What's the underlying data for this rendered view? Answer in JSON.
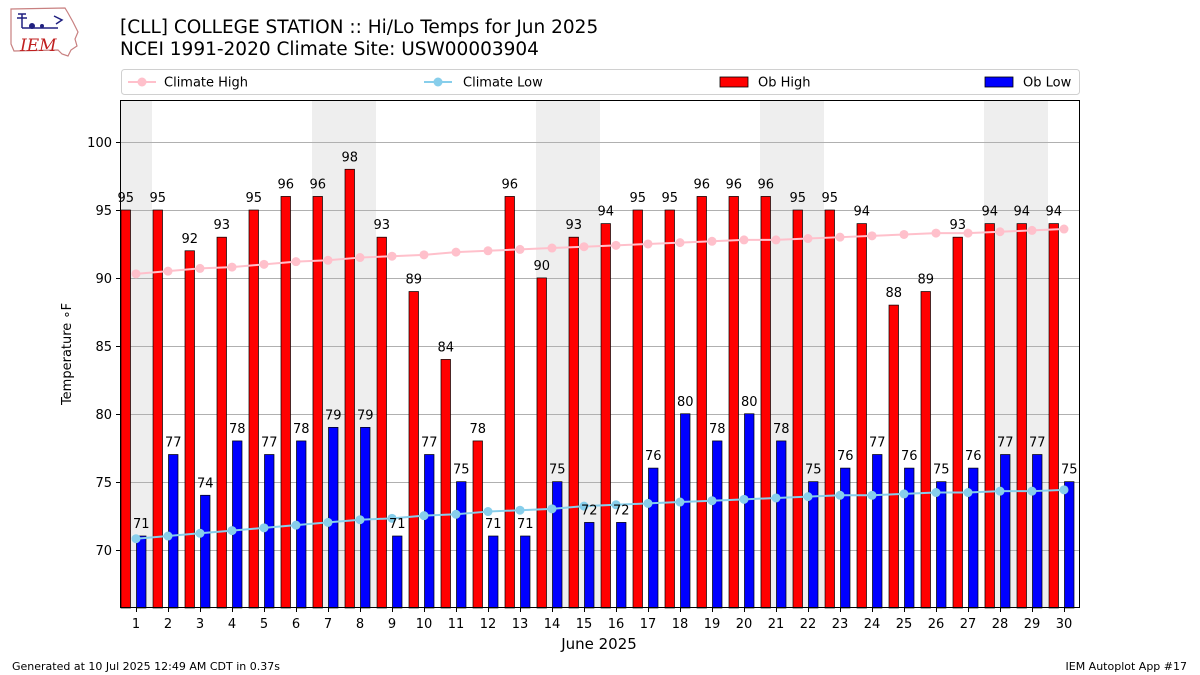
{
  "header": {
    "title_line1": "[CLL] COLLEGE STATION :: Hi/Lo Temps for Jun 2025",
    "title_line2": "NCEI 1991-2020 Climate Site: USW00003904",
    "logo_text": "IEM"
  },
  "footer": {
    "generated": "Generated at 10 Jul 2025 12:49 AM CDT in 0.37s",
    "app": "IEM Autoplot App #17"
  },
  "colors": {
    "ob_high": "#ff0000",
    "ob_low": "#0000ff",
    "climate_high": "#ffc0cb",
    "climate_low": "#87ceeb",
    "weekend_shade": "#eeeeee",
    "grid": "#b0b0b0"
  },
  "chart_data": {
    "type": "bar",
    "xlabel": "June 2025",
    "ylabel": "Temperature ∘F",
    "ylim": [
      65.7,
      103.1
    ],
    "yticks": [
      70,
      75,
      80,
      85,
      90,
      95,
      100
    ],
    "grid": "horizontal",
    "legend_placement": "top",
    "categories": [
      "1",
      "2",
      "3",
      "4",
      "5",
      "6",
      "7",
      "8",
      "9",
      "10",
      "11",
      "12",
      "13",
      "14",
      "15",
      "16",
      "17",
      "18",
      "19",
      "20",
      "21",
      "22",
      "23",
      "24",
      "25",
      "26",
      "27",
      "28",
      "29",
      "30"
    ],
    "shaded_days": [
      1,
      7,
      8,
      14,
      15,
      21,
      22,
      28,
      29
    ],
    "series": [
      {
        "name": "Climate High",
        "kind": "line",
        "values": [
          90.3,
          90.5,
          90.7,
          90.8,
          91.0,
          91.2,
          91.3,
          91.5,
          91.6,
          91.7,
          91.9,
          92.0,
          92.1,
          92.2,
          92.3,
          92.4,
          92.5,
          92.6,
          92.7,
          92.8,
          92.8,
          92.9,
          93.0,
          93.1,
          93.2,
          93.3,
          93.3,
          93.4,
          93.5,
          93.6
        ]
      },
      {
        "name": "Climate Low",
        "kind": "line",
        "values": [
          70.8,
          71.0,
          71.2,
          71.4,
          71.6,
          71.8,
          72.0,
          72.2,
          72.3,
          72.5,
          72.6,
          72.8,
          72.9,
          73.0,
          73.2,
          73.3,
          73.4,
          73.5,
          73.6,
          73.7,
          73.8,
          73.9,
          74.0,
          74.0,
          74.1,
          74.2,
          74.2,
          74.3,
          74.3,
          74.4
        ]
      },
      {
        "name": "Ob High",
        "kind": "bar",
        "values": [
          95,
          95,
          92,
          93,
          95,
          96,
          96,
          98,
          93,
          89,
          84,
          78,
          96,
          90,
          93,
          94,
          95,
          95,
          96,
          96,
          96,
          95,
          95,
          94,
          88,
          89,
          93,
          94,
          94,
          94
        ]
      },
      {
        "name": "Ob Low",
        "kind": "bar",
        "values": [
          71,
          77,
          74,
          78,
          77,
          78,
          79,
          79,
          71,
          77,
          75,
          71,
          71,
          75,
          72,
          72,
          76,
          80,
          78,
          80,
          78,
          75,
          76,
          77,
          76,
          75,
          76,
          77,
          77,
          75
        ]
      }
    ]
  }
}
